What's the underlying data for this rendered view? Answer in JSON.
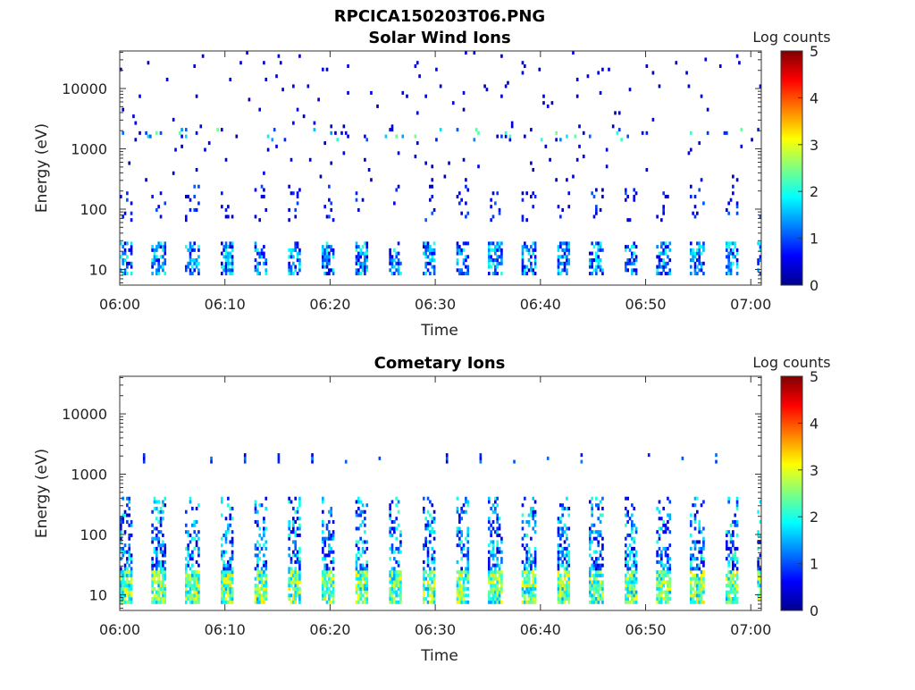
{
  "figure_title": "RPCICA150203T06.PNG",
  "colorbar": {
    "colors": [
      "#00008f",
      "#0000ff",
      "#0080ff",
      "#00ffff",
      "#80ff80",
      "#ffff00",
      "#ff8000",
      "#ff0000",
      "#800000"
    ]
  },
  "chart_data": [
    {
      "type": "heatmap",
      "title": "Solar Wind Ions",
      "xlabel": "Time",
      "ylabel": "Energy (eV)",
      "x_tick_labels": [
        "06:00",
        "06:10",
        "06:20",
        "06:30",
        "06:40",
        "06:50",
        "07:00"
      ],
      "x_ticks_minutes": [
        0,
        10,
        20,
        30,
        40,
        50,
        60
      ],
      "xlim_minutes": [
        0,
        61
      ],
      "y_scale": "log",
      "ylim": [
        5.5,
        42000
      ],
      "y_ticks": [
        10,
        100,
        1000,
        10000
      ],
      "y_tick_labels": [
        "10",
        "100",
        "1000",
        "10000"
      ],
      "colorbar_label": "Log counts",
      "colorbar_range": [
        0,
        5
      ],
      "colorbar_ticks": [
        "0",
        "1",
        "2",
        "3",
        "4",
        "5"
      ],
      "sweep_period_minutes": 3.2,
      "band_summary": [
        {
          "energy_range_eV": [
            8,
            30
          ],
          "log_counts_typical": 1.2,
          "coverage": "dense, periodic"
        },
        {
          "energy_range_eV": [
            60,
            250
          ],
          "log_counts_typical": 0.7,
          "coverage": "sparse, periodic"
        },
        {
          "energy_range_eV": [
            1400,
            2200
          ],
          "log_counts_typical": 1.4,
          "coverage": "sparse, periodic"
        },
        {
          "energy_range_eV": [
            2200,
            42000
          ],
          "log_counts_typical": 0.3,
          "coverage": "scattered"
        }
      ]
    },
    {
      "type": "heatmap",
      "title": "Cometary Ions",
      "xlabel": "Time",
      "ylabel": "Energy (eV)",
      "x_tick_labels": [
        "06:00",
        "06:10",
        "06:20",
        "06:30",
        "06:40",
        "06:50",
        "07:00"
      ],
      "x_ticks_minutes": [
        0,
        10,
        20,
        30,
        40,
        50,
        60
      ],
      "xlim_minutes": [
        0,
        61
      ],
      "y_scale": "log",
      "ylim": [
        5.5,
        42000
      ],
      "y_ticks": [
        10,
        100,
        1000,
        10000
      ],
      "y_tick_labels": [
        "10",
        "100",
        "1000",
        "10000"
      ],
      "colorbar_label": "Log counts",
      "colorbar_range": [
        0,
        5
      ],
      "colorbar_ticks": [
        "0",
        "1",
        "2",
        "3",
        "4",
        "5"
      ],
      "sweep_period_minutes": 3.2,
      "band_summary": [
        {
          "energy_range_eV": [
            7,
            25
          ],
          "log_counts_typical": 2.6,
          "coverage": "dense, periodic"
        },
        {
          "energy_range_eV": [
            25,
            400
          ],
          "log_counts_typical": 1.3,
          "coverage": "dense, periodic"
        },
        {
          "energy_range_eV": [
            1500,
            2200
          ],
          "log_counts_typical": 1.0,
          "coverage": "periodic dots"
        }
      ]
    }
  ]
}
